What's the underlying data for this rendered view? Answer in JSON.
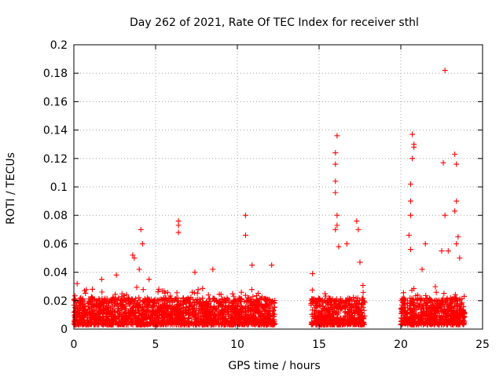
{
  "chart_data": {
    "type": "scatter",
    "title": "Day 262 of 2021, Rate Of TEC Index for receiver sthl",
    "xlabel": "GPS time / hours",
    "ylabel": "ROTI / TECUs",
    "xlim": [
      0,
      25
    ],
    "ylim": [
      0,
      0.2
    ],
    "xticks": [
      0,
      5,
      10,
      15,
      20,
      25
    ],
    "yticks": [
      0,
      0.02,
      0.04,
      0.06,
      0.08,
      0.1,
      0.12,
      0.14,
      0.16,
      0.18,
      0.2
    ],
    "ytick_labels": [
      "0",
      "0.02",
      "0.04",
      "0.06",
      "0.08",
      "0.1",
      "0.12",
      "0.14",
      "0.16",
      "0.18",
      "0.2"
    ],
    "grid": true,
    "marker": "+",
    "color": "#ff0000",
    "data_segments": [
      {
        "start": 0.0,
        "end": 12.3
      },
      {
        "start": 14.5,
        "end": 17.8
      },
      {
        "start": 20.0,
        "end": 23.9
      }
    ],
    "peaks": [
      {
        "x": 0.2,
        "y": 0.032
      },
      {
        "x": 1.7,
        "y": 0.035
      },
      {
        "x": 2.6,
        "y": 0.038
      },
      {
        "x": 3.6,
        "y": 0.052
      },
      {
        "x": 3.7,
        "y": 0.05
      },
      {
        "x": 4.1,
        "y": 0.07
      },
      {
        "x": 4.2,
        "y": 0.06
      },
      {
        "x": 4.0,
        "y": 0.042
      },
      {
        "x": 4.6,
        "y": 0.035
      },
      {
        "x": 6.4,
        "y": 0.076
      },
      {
        "x": 6.4,
        "y": 0.073
      },
      {
        "x": 6.4,
        "y": 0.068
      },
      {
        "x": 7.4,
        "y": 0.04
      },
      {
        "x": 8.5,
        "y": 0.042
      },
      {
        "x": 10.5,
        "y": 0.08
      },
      {
        "x": 10.5,
        "y": 0.066
      },
      {
        "x": 10.9,
        "y": 0.045
      },
      {
        "x": 12.1,
        "y": 0.045
      },
      {
        "x": 14.6,
        "y": 0.039
      },
      {
        "x": 16.1,
        "y": 0.136
      },
      {
        "x": 16.0,
        "y": 0.124
      },
      {
        "x": 16.0,
        "y": 0.116
      },
      {
        "x": 16.0,
        "y": 0.104
      },
      {
        "x": 16.0,
        "y": 0.096
      },
      {
        "x": 16.1,
        "y": 0.08
      },
      {
        "x": 16.1,
        "y": 0.073
      },
      {
        "x": 16.0,
        "y": 0.07
      },
      {
        "x": 16.2,
        "y": 0.058
      },
      {
        "x": 16.7,
        "y": 0.06
      },
      {
        "x": 17.3,
        "y": 0.076
      },
      {
        "x": 17.4,
        "y": 0.07
      },
      {
        "x": 17.5,
        "y": 0.047
      },
      {
        "x": 20.6,
        "y": 0.102
      },
      {
        "x": 20.6,
        "y": 0.09
      },
      {
        "x": 20.6,
        "y": 0.08
      },
      {
        "x": 20.7,
        "y": 0.137
      },
      {
        "x": 20.8,
        "y": 0.13
      },
      {
        "x": 20.8,
        "y": 0.128
      },
      {
        "x": 20.7,
        "y": 0.12
      },
      {
        "x": 20.5,
        "y": 0.066
      },
      {
        "x": 20.6,
        "y": 0.056
      },
      {
        "x": 21.5,
        "y": 0.06
      },
      {
        "x": 21.3,
        "y": 0.042
      },
      {
        "x": 22.7,
        "y": 0.182
      },
      {
        "x": 22.6,
        "y": 0.117
      },
      {
        "x": 23.3,
        "y": 0.123
      },
      {
        "x": 23.4,
        "y": 0.116
      },
      {
        "x": 23.4,
        "y": 0.09
      },
      {
        "x": 23.3,
        "y": 0.083
      },
      {
        "x": 22.7,
        "y": 0.08
      },
      {
        "x": 23.5,
        "y": 0.065
      },
      {
        "x": 23.4,
        "y": 0.06
      },
      {
        "x": 22.9,
        "y": 0.055
      },
      {
        "x": 22.5,
        "y": 0.055
      },
      {
        "x": 23.6,
        "y": 0.05
      }
    ]
  }
}
